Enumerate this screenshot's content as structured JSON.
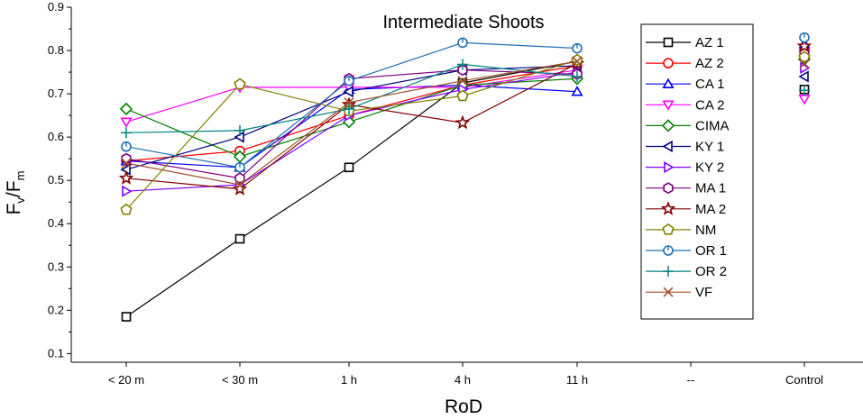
{
  "chart_data": {
    "type": "line",
    "title": "Intermediate Shoots",
    "xlabel": "RoD",
    "ylabel": {
      "main": "F",
      "sub1": "v",
      "slash": "/F",
      "sub2": "m"
    },
    "categories": [
      "< 20 m",
      "< 30 m",
      "1 h",
      "4 h",
      "11 h",
      "--",
      "Control"
    ],
    "y_ticks": [
      "0.1",
      "0.2",
      "0.3",
      "0.4",
      "0.5",
      "0.6",
      "0.7",
      "0.8",
      "0.9"
    ],
    "ylim": [
      0.08,
      0.9
    ],
    "legend_position": "right",
    "series": [
      {
        "name": "AZ 1",
        "color": "#000000",
        "marker": "square",
        "values": [
          0.185,
          0.365,
          0.53,
          0.725,
          0.775,
          null,
          0.71
        ]
      },
      {
        "name": "AZ 2",
        "color": "#ff0000",
        "marker": "circle",
        "values": [
          0.545,
          0.568,
          0.65,
          0.72,
          0.765,
          null,
          0.8
        ]
      },
      {
        "name": "CA 1",
        "color": "#0000ff",
        "marker": "triangle-up",
        "values": [
          0.545,
          0.53,
          0.71,
          0.72,
          0.705,
          null,
          0.815
        ]
      },
      {
        "name": "CA 2",
        "color": "#ff00ff",
        "marker": "triangle-down",
        "values": [
          0.635,
          0.715,
          0.715,
          0.715,
          0.755,
          null,
          0.688
        ]
      },
      {
        "name": "CIMA",
        "color": "#008000",
        "marker": "diamond",
        "values": [
          0.665,
          0.555,
          0.635,
          0.72,
          0.735,
          null,
          0.78
        ]
      },
      {
        "name": "KY 1",
        "color": "#000080",
        "marker": "triangle-left",
        "values": [
          0.525,
          0.6,
          0.705,
          0.755,
          0.765,
          null,
          0.74
        ]
      },
      {
        "name": "KY 2",
        "color": "#8000ff",
        "marker": "triangle-right",
        "values": [
          0.475,
          0.49,
          0.65,
          0.71,
          0.75,
          null,
          0.76
        ]
      },
      {
        "name": "MA 1",
        "color": "#800080",
        "marker": "hexagon",
        "values": [
          0.55,
          0.505,
          0.735,
          0.755,
          0.745,
          null,
          0.795
        ]
      },
      {
        "name": "MA 2",
        "color": "#800000",
        "marker": "star",
        "values": [
          0.505,
          0.48,
          0.675,
          0.633,
          0.77,
          null,
          0.81
        ]
      },
      {
        "name": "NM",
        "color": "#808000",
        "marker": "pentagon",
        "values": [
          0.432,
          0.722,
          0.66,
          0.695,
          0.778,
          null,
          0.785
        ]
      },
      {
        "name": "OR 1",
        "color": "#1f6fb5",
        "marker": "circle-dot",
        "values": [
          0.578,
          0.53,
          0.73,
          0.818,
          0.805,
          null,
          0.83
        ]
      },
      {
        "name": "OR 2",
        "color": "#008080",
        "marker": "plus",
        "values": [
          0.61,
          0.615,
          0.665,
          0.768,
          0.74,
          null,
          0.708
        ]
      },
      {
        "name": "VF",
        "color": "#a0522d",
        "marker": "x",
        "values": [
          0.54,
          0.49,
          0.68,
          0.73,
          0.775,
          null,
          0.77
        ]
      }
    ]
  }
}
